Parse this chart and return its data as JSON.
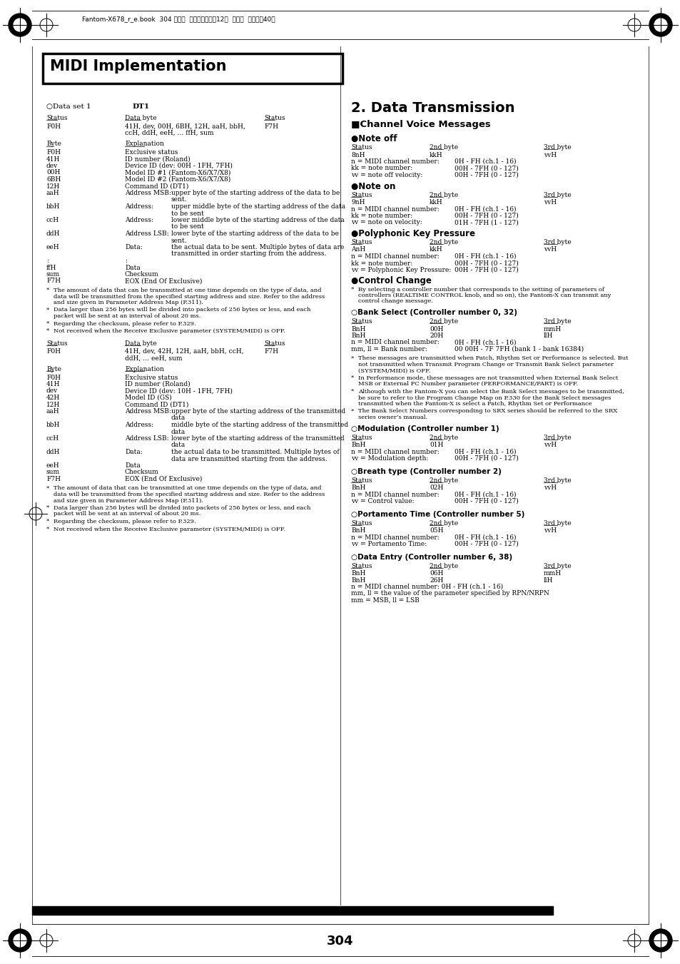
{
  "page_number": "304",
  "header_text": "Fantom-X678_r_e.book  304 ページ  ２００５年５月12日  木曜日  午後４時40分",
  "title": "MIDI Implementation",
  "bg_color": "#ffffff"
}
